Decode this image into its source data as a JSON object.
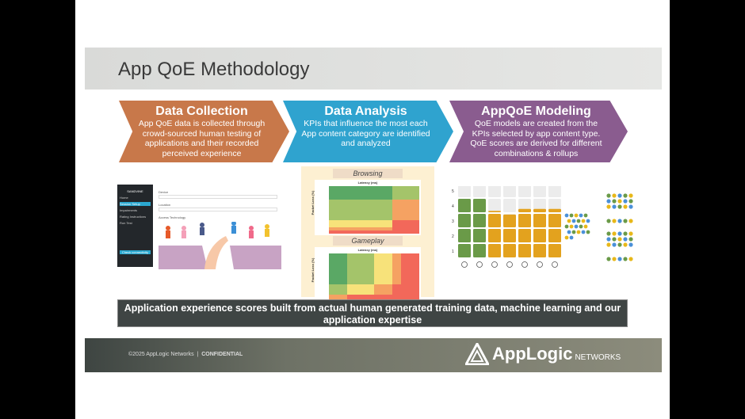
{
  "title": "App QoE Methodology",
  "steps": [
    {
      "title": "Data Collection",
      "desc": "App QoE data is collected through crowd-sourced human testing of applications and their recorded perceived experience",
      "color": "#c8784a"
    },
    {
      "title": "Data Analysis",
      "desc": "KPIs that influence the most each App content category are identified and analyzed",
      "color": "#2fa3cf"
    },
    {
      "title": "AppQoE Modeling",
      "desc": "QoE models are created from the KPIs selected by app content type. QoE scores are derived for different combinations & rollups",
      "color": "#8a5c8f"
    }
  ],
  "app_screenshot": {
    "brand": "SANDVINE",
    "menu": [
      "Home",
      "Session Setup",
      "Impairments",
      "Rating Instructions",
      "Run Test"
    ],
    "button": "Check connectivity",
    "form_labels": [
      "Device",
      "Location",
      "Access Technology"
    ]
  },
  "heatmaps": {
    "top": "Browsing",
    "bottom": "Gameplay",
    "x_label": "Latency (ms)",
    "y_label": "Packet Loss (%)"
  },
  "model": {
    "y_ticks": [
      "1",
      "2",
      "3",
      "4",
      "5"
    ],
    "levels": [
      4.0,
      4.0,
      3.1,
      2.95,
      3.25,
      3.25,
      3.25
    ],
    "colors": [
      "#6a9a48",
      "#6a9a48",
      "#e3a21e",
      "#e3a21e",
      "#e3a21e",
      "#e3a21e",
      "#e3a21e"
    ],
    "icons": [
      "globe-icon",
      "play-icon",
      "chat-icon",
      "gamepad-icon",
      "cloud-upload-icon",
      "cloud-download-icon",
      "phone-icon"
    ]
  },
  "banner": "Application experience scores built from actual human generated training data, machine learning and our application expertise",
  "footer": {
    "copyright": "©2025 AppLogic Networks",
    "confidential": "CONFIDENTIAL",
    "logo_name": "AppLogic",
    "logo_suffix": "NETWORKS"
  }
}
